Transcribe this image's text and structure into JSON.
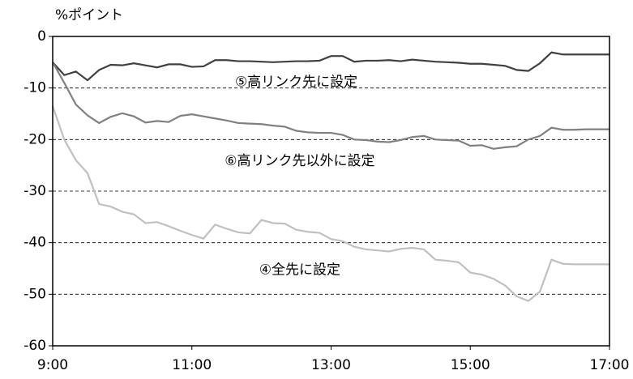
{
  "chart_data": {
    "type": "line",
    "y_unit_label": "%ポイント",
    "x": [
      540,
      550,
      560,
      570,
      580,
      590,
      600,
      610,
      620,
      630,
      640,
      650,
      660,
      670,
      680,
      690,
      700,
      710,
      720,
      730,
      740,
      750,
      760,
      770,
      780,
      790,
      800,
      810,
      820,
      830,
      840,
      850,
      860,
      870,
      880,
      890,
      900,
      910,
      920,
      930,
      940,
      950,
      960,
      970,
      980,
      990,
      1000,
      1010,
      1020
    ],
    "series": [
      {
        "name": "⑤高リンク先に設定",
        "color": "#404040",
        "values": [
          -5,
          -7.5,
          -6.8,
          -8.5,
          -6.5,
          -5.5,
          -5.6,
          -5.2,
          -5.6,
          -6,
          -5.4,
          -5.4,
          -5.9,
          -5.8,
          -4.6,
          -4.6,
          -4.8,
          -4.8,
          -4.9,
          -5,
          -4.9,
          -4.8,
          -4.8,
          -4.7,
          -3.8,
          -3.8,
          -4.9,
          -4.7,
          -4.7,
          -4.6,
          -4.8,
          -4.5,
          -4.7,
          -4.9,
          -5,
          -5.1,
          -5.3,
          -5.3,
          -5.5,
          -5.7,
          -6.5,
          -6.7,
          -5.2,
          -3.1,
          -3.5,
          -3.5,
          -3.5,
          -3.5,
          -3.5
        ],
        "label_at": [
          750,
          -8.9
        ]
      },
      {
        "name": "⑥高リンク先以外に設定",
        "color": "#808080",
        "values": [
          -5,
          -9,
          -13.2,
          -15.3,
          -16.8,
          -15.6,
          -14.9,
          -15.5,
          -16.7,
          -16.4,
          -16.6,
          -15.4,
          -15.1,
          -15.5,
          -15.9,
          -16.3,
          -16.8,
          -16.9,
          -17,
          -17.3,
          -17.5,
          -18.3,
          -18.6,
          -18.7,
          -18.7,
          -19.1,
          -20,
          -20.1,
          -20.4,
          -20.5,
          -20.1,
          -19.5,
          -19.3,
          -20,
          -20.1,
          -20.2,
          -21.2,
          -21.1,
          -21.8,
          -21.5,
          -21.3,
          -20,
          -19.3,
          -17.7,
          -18.1,
          -18.1,
          -18,
          -18,
          -18
        ],
        "label_at": [
          753,
          -24.2
        ]
      },
      {
        "name": "④全先に設定",
        "color": "#c0c0c0",
        "values": [
          -13.5,
          -20,
          -24,
          -26.5,
          -32.5,
          -33,
          -34,
          -34.5,
          -36.2,
          -36,
          -36.8,
          -37.7,
          -38.5,
          -39.2,
          -36.5,
          -37.3,
          -38,
          -38.2,
          -35.6,
          -36.2,
          -36.3,
          -37.5,
          -37.9,
          -38.1,
          -39.3,
          -39.7,
          -40.8,
          -41.3,
          -41.5,
          -41.7,
          -41.2,
          -41,
          -41.3,
          -43.3,
          -43.5,
          -43.8,
          -45.8,
          -46.2,
          -47,
          -48.3,
          -50.4,
          -51.3,
          -49.5,
          -43.3,
          -44.1,
          -44.2,
          -44.2,
          -44.2,
          -44.2
        ],
        "label_at": [
          753,
          -45.3
        ]
      }
    ],
    "xlim": [
      540,
      1020
    ],
    "xticks": [
      {
        "value": 540,
        "label": "9:00"
      },
      {
        "value": 660,
        "label": "11:00"
      },
      {
        "value": 780,
        "label": "13:00"
      },
      {
        "value": 900,
        "label": "15:00"
      },
      {
        "value": 1020,
        "label": "17:00"
      }
    ],
    "ylim": [
      -60,
      0
    ],
    "yticks": [
      -60,
      -50,
      -40,
      -30,
      -20,
      -10,
      0
    ],
    "grid": true
  }
}
